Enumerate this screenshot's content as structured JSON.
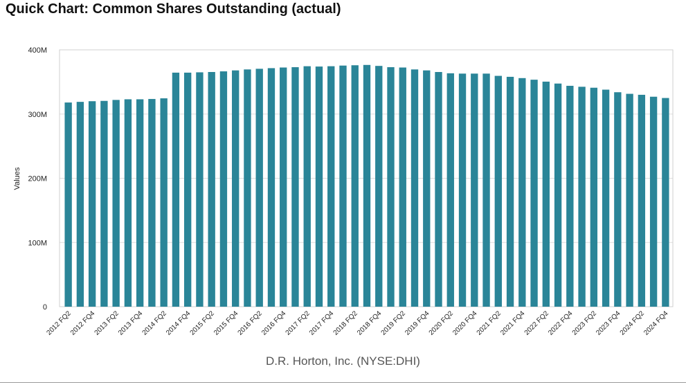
{
  "title": "Quick Chart: Common Shares Outstanding (actual)",
  "chart_data": {
    "type": "bar",
    "title": "Quick Chart: Common Shares Outstanding (actual)",
    "xlabel": "D.R. Horton, Inc. (NYSE:DHI)",
    "ylabel": "Values",
    "ylim": [
      0,
      400000000
    ],
    "yticks": [
      {
        "value": 0,
        "label": "0"
      },
      {
        "value": 100000000,
        "label": "100M"
      },
      {
        "value": 200000000,
        "label": "200M"
      },
      {
        "value": 300000000,
        "label": "300M"
      },
      {
        "value": 400000000,
        "label": "400M"
      }
    ],
    "grid": true,
    "bar_color": "#2a8598",
    "categories": [
      "2012 FQ2",
      "2012 FQ3",
      "2012 FQ4",
      "2013 FQ1",
      "2013 FQ2",
      "2013 FQ3",
      "2013 FQ4",
      "2014 FQ1",
      "2014 FQ2",
      "2014 FQ3",
      "2014 FQ4",
      "2015 FQ1",
      "2015 FQ2",
      "2015 FQ3",
      "2015 FQ4",
      "2016 FQ1",
      "2016 FQ2",
      "2016 FQ3",
      "2016 FQ4",
      "2017 FQ1",
      "2017 FQ2",
      "2017 FQ3",
      "2017 FQ4",
      "2018 FQ1",
      "2018 FQ2",
      "2018 FQ3",
      "2018 FQ4",
      "2019 FQ1",
      "2019 FQ2",
      "2019 FQ3",
      "2019 FQ4",
      "2020 FQ1",
      "2020 FQ2",
      "2020 FQ3",
      "2020 FQ4",
      "2021 FQ1",
      "2021 FQ2",
      "2021 FQ3",
      "2021 FQ4",
      "2022 FQ1",
      "2022 FQ2",
      "2022 FQ3",
      "2022 FQ4",
      "2023 FQ1",
      "2023 FQ2",
      "2023 FQ3",
      "2023 FQ4",
      "2024 FQ1",
      "2024 FQ2",
      "2024 FQ3",
      "2024 FQ4"
    ],
    "tick_labels_shown": [
      "2012 FQ2",
      "2012 FQ4",
      "2013 FQ2",
      "2013 FQ4",
      "2014 FQ2",
      "2014 FQ4",
      "2015 FQ2",
      "2015 FQ4",
      "2016 FQ2",
      "2016 FQ4",
      "2017 FQ2",
      "2017 FQ4",
      "2018 FQ2",
      "2018 FQ4",
      "2019 FQ2",
      "2019 FQ4",
      "2020 FQ2",
      "2020 FQ4",
      "2021 FQ2",
      "2021 FQ4",
      "2022 FQ2",
      "2022 FQ4",
      "2023 FQ2",
      "2023 FQ4",
      "2024 FQ2",
      "2024 FQ4"
    ],
    "values": [
      318000000,
      319000000,
      320000000,
      320500000,
      322000000,
      323000000,
      323000000,
      323500000,
      324500000,
      364500000,
      364500000,
      365000000,
      365500000,
      366500000,
      368000000,
      369500000,
      370500000,
      371500000,
      372500000,
      373000000,
      374500000,
      374000000,
      374500000,
      375500000,
      376000000,
      376500000,
      375000000,
      373000000,
      372500000,
      369500000,
      368000000,
      365500000,
      363500000,
      363000000,
      363000000,
      363000000,
      359500000,
      358000000,
      356000000,
      353500000,
      350500000,
      347500000,
      344000000,
      342500000,
      341000000,
      338000000,
      334000000,
      331500000,
      330000000,
      327000000,
      325000000
    ]
  }
}
